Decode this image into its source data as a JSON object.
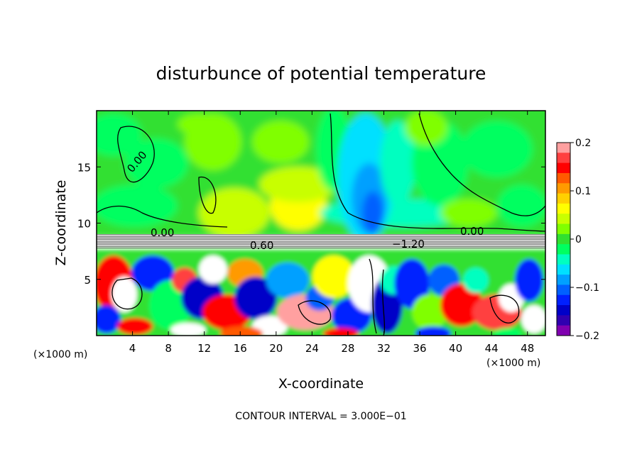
{
  "chart_data": {
    "type": "heatmap",
    "title": "disturbunce of potential temperature",
    "xlabel": "X-coordinate",
    "ylabel": "Z-coordinate",
    "x_unit": "(×1000 m)",
    "x_ticks": [
      "4",
      "8",
      "12",
      "16",
      "20",
      "24",
      "28",
      "32",
      "36",
      "40",
      "44",
      "48"
    ],
    "y_ticks": [
      "5",
      "10",
      "15"
    ],
    "xlim": [
      0,
      50
    ],
    "ylim": [
      0,
      20
    ],
    "colorbar": {
      "ticks": [
        "0.2",
        "0.1",
        "0",
        "−0.1",
        "−0.2"
      ],
      "range": [
        -0.2,
        0.2
      ],
      "colors": [
        "#ffa0a0",
        "#ff4040",
        "#ff0000",
        "#ff5a00",
        "#ff9a00",
        "#ffd000",
        "#ffff00",
        "#c8ff00",
        "#80ff00",
        "#30e030",
        "#00ff60",
        "#00ffc0",
        "#00e0ff",
        "#00a0ff",
        "#0060ff",
        "#0020ff",
        "#0000c8",
        "#3000b0",
        "#8000b0"
      ]
    },
    "contour_labels": [
      "0.00",
      "0.00",
      "0.00",
      "0.60",
      "−1.20"
    ],
    "note": "CONTOUR INTERVAL = 3.000E−01"
  }
}
